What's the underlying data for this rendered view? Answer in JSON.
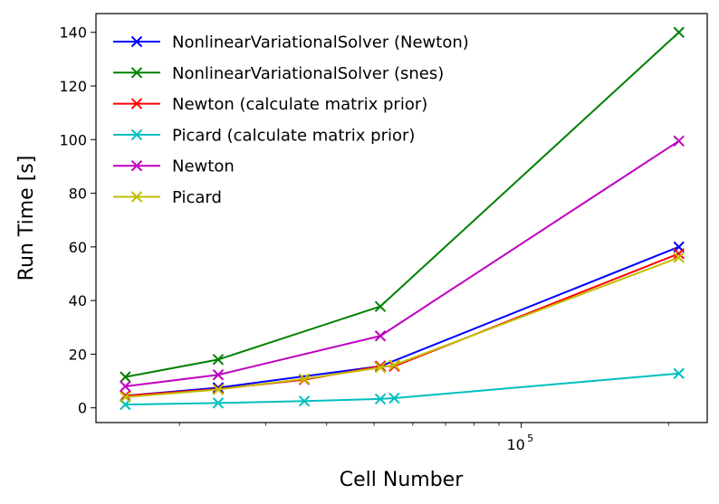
{
  "chart_data": {
    "type": "line",
    "title": "",
    "xlabel": "Cell Number",
    "ylabel": "Run Time [s]",
    "xscale": "log",
    "xlim": [
      13500,
      240000
    ],
    "ylim": [
      -5.5,
      147
    ],
    "grid": false,
    "legend_position": "top-left",
    "x_major_ticks": [
      {
        "value": 100000,
        "base": "10",
        "exp": "5"
      }
    ],
    "x_minor_ticks": [
      20000,
      30000,
      40000,
      50000,
      60000,
      70000,
      80000,
      90000,
      200000
    ],
    "y_ticks": [
      0,
      20,
      40,
      60,
      80,
      100,
      120,
      140
    ],
    "series": [
      {
        "name": "NonlinearVariationalSolver (Newton)",
        "color": "#0000ff",
        "x": [
          15500,
          24000,
          51500,
          210000
        ],
        "y": [
          4.5,
          7.5,
          15.5,
          60.0
        ]
      },
      {
        "name": "NonlinearVariationalSolver (snes)",
        "color": "#008000",
        "x": [
          15500,
          24000,
          51500,
          210000
        ],
        "y": [
          11.5,
          18.0,
          37.8,
          140.0
        ]
      },
      {
        "name": "Newton (calculate matrix prior)",
        "color": "#ff0000",
        "x": [
          15500,
          24000,
          36000,
          51500,
          55000,
          210000
        ],
        "y": [
          4.5,
          7.0,
          10.5,
          15.5,
          15.5,
          57.5
        ]
      },
      {
        "name": "Picard (calculate matrix prior)",
        "color": "#00bfbf",
        "x": [
          15500,
          24000,
          36000,
          51500,
          55000,
          210000
        ],
        "y": [
          1.2,
          1.8,
          2.5,
          3.3,
          3.6,
          12.8
        ]
      },
      {
        "name": "Newton",
        "color": "#bf00bf",
        "x": [
          15500,
          24000,
          51500,
          210000
        ],
        "y": [
          8.0,
          12.3,
          26.8,
          99.5
        ]
      },
      {
        "name": "Picard",
        "color": "#bfbf00",
        "x": [
          15500,
          24000,
          36000,
          51500,
          55000,
          210000
        ],
        "y": [
          4.0,
          6.8,
          10.8,
          15.0,
          16.0,
          56.0
        ]
      }
    ]
  }
}
